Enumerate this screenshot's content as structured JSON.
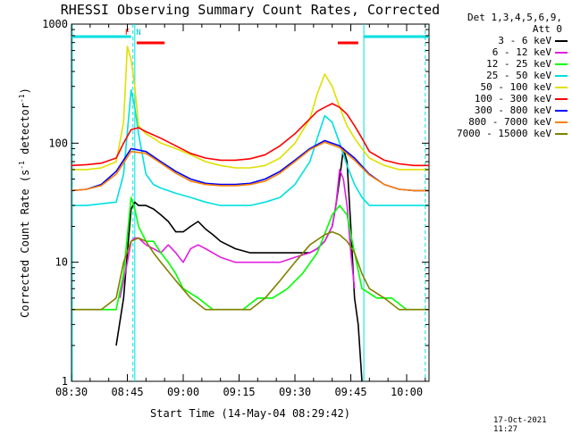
{
  "chart_data": {
    "type": "line",
    "title": "RHESSI Observing Summary Count Rates, Corrected",
    "xlabel": "Start Time (14-May-04 08:29:42)",
    "ylabel": "Corrected Count Rate (s-1 detector-1)",
    "x_ticks": [
      "08:30",
      "08:45",
      "09:00",
      "09:15",
      "09:30",
      "09:45",
      "10:00"
    ],
    "x_tick_minutes": [
      0,
      15,
      30,
      45,
      60,
      75,
      90
    ],
    "xlim_minutes": [
      0,
      96
    ],
    "y_scale": "log",
    "ylim": [
      1,
      1000
    ],
    "y_ticks": [
      "1",
      "10",
      "100",
      "1000"
    ],
    "y_tick_values": [
      1,
      10,
      100,
      1000
    ],
    "legend_header": [
      "Det 1,3,4,5,6,9,",
      "Att 0"
    ],
    "legend_placement": "right, outside",
    "flags": {
      "cyan_bars": [
        [
          0,
          16
        ],
        [
          78.5,
          96
        ]
      ],
      "red_bars": [
        [
          17.5,
          25
        ],
        [
          71.5,
          77
        ]
      ],
      "labels": [
        {
          "text": "F",
          "minute": 15
        },
        {
          "text": "N",
          "minute": 18
        }
      ]
    },
    "vertical_markers_solid": [
      17,
      78.5
    ],
    "vertical_markers_dashed": [
      16.5,
      95
    ],
    "series": [
      {
        "name": "3 - 6 keV",
        "color": "#000000",
        "x": [
          12,
          14,
          15,
          16,
          17,
          18,
          20,
          22,
          24,
          26,
          28,
          30,
          32,
          34,
          36,
          38,
          40,
          44,
          48,
          52,
          56,
          60,
          64,
          66,
          68,
          70,
          71,
          72,
          73,
          74,
          75,
          76,
          77,
          78
        ],
        "y": [
          2,
          5,
          12,
          28,
          32,
          30,
          30,
          28,
          25,
          22,
          18,
          18,
          20,
          22,
          19,
          17,
          15,
          13,
          12,
          12,
          12,
          12,
          12,
          13,
          15,
          20,
          30,
          50,
          90,
          70,
          20,
          5,
          3,
          1
        ]
      },
      {
        "name": "6 - 12 keV",
        "color": "#e020e0",
        "x": [
          13,
          15,
          16,
          17,
          18,
          20,
          22,
          24,
          26,
          28,
          30,
          32,
          34,
          36,
          40,
          44,
          48,
          52,
          56,
          60,
          64,
          66,
          68,
          70,
          71,
          72,
          73,
          74,
          75,
          76
        ],
        "y": [
          5,
          10,
          15,
          16,
          16,
          14,
          13,
          12,
          14,
          12,
          10,
          13,
          14,
          13,
          11,
          10,
          10,
          10,
          10,
          11,
          12,
          13,
          15,
          20,
          30,
          60,
          50,
          30,
          12,
          6
        ]
      },
      {
        "name": "12 - 25 keV",
        "color": "#00ff00",
        "x": [
          0,
          4,
          8,
          12,
          14,
          16,
          17,
          18,
          20,
          22,
          24,
          26,
          28,
          30,
          34,
          38,
          42,
          46,
          50,
          54,
          58,
          62,
          66,
          70,
          72,
          74,
          76,
          78,
          82,
          86,
          90,
          96
        ],
        "y": [
          4,
          4,
          4,
          4,
          8,
          35,
          28,
          20,
          15,
          15,
          12,
          10,
          8,
          6,
          5,
          4,
          4,
          4,
          5,
          5,
          6,
          8,
          12,
          25,
          30,
          25,
          12,
          6,
          5,
          5,
          4,
          4
        ]
      },
      {
        "name": "25 - 50 keV",
        "color": "#00e0e0",
        "x": [
          0,
          4,
          8,
          12,
          14,
          16,
          17,
          18,
          20,
          22,
          24,
          28,
          32,
          36,
          40,
          44,
          48,
          52,
          56,
          60,
          64,
          66,
          68,
          70,
          72,
          74,
          76,
          78,
          80,
          84,
          88,
          92,
          96
        ],
        "y": [
          30,
          30,
          31,
          32,
          55,
          280,
          200,
          120,
          55,
          45,
          42,
          38,
          35,
          32,
          30,
          30,
          30,
          32,
          35,
          45,
          70,
          110,
          170,
          150,
          100,
          65,
          45,
          35,
          30,
          30,
          30,
          30,
          30
        ]
      },
      {
        "name": "50 - 100 keV",
        "color": "#e0e000",
        "x": [
          0,
          4,
          8,
          12,
          14,
          15,
          16,
          17,
          18,
          20,
          22,
          24,
          28,
          32,
          36,
          40,
          44,
          48,
          52,
          56,
          60,
          64,
          66,
          68,
          70,
          72,
          74,
          76,
          78,
          80,
          84,
          88,
          92,
          96
        ],
        "y": [
          60,
          60,
          62,
          70,
          150,
          650,
          500,
          300,
          140,
          120,
          110,
          100,
          90,
          80,
          70,
          65,
          62,
          62,
          65,
          75,
          100,
          160,
          260,
          380,
          300,
          200,
          140,
          110,
          90,
          75,
          65,
          60,
          60,
          60
        ]
      },
      {
        "name": "100 - 300 keV",
        "color": "#ff0000",
        "x": [
          0,
          4,
          8,
          12,
          14,
          16,
          18,
          20,
          24,
          28,
          32,
          36,
          40,
          44,
          48,
          52,
          56,
          60,
          64,
          66,
          68,
          70,
          72,
          74,
          76,
          78,
          80,
          84,
          88,
          92,
          96
        ],
        "y": [
          65,
          66,
          68,
          75,
          100,
          130,
          135,
          125,
          110,
          95,
          82,
          75,
          72,
          72,
          74,
          80,
          95,
          120,
          160,
          185,
          200,
          215,
          200,
          175,
          140,
          110,
          85,
          72,
          67,
          65,
          65
        ]
      },
      {
        "name": "300 - 800 keV",
        "color": "#0000ff",
        "x": [
          0,
          4,
          8,
          12,
          16,
          20,
          24,
          28,
          32,
          36,
          40,
          44,
          48,
          52,
          56,
          60,
          64,
          68,
          72,
          76,
          80,
          84,
          88,
          92,
          96
        ],
        "y": [
          40,
          41,
          45,
          58,
          90,
          85,
          70,
          58,
          50,
          46,
          45,
          45,
          46,
          50,
          58,
          72,
          90,
          105,
          95,
          75,
          55,
          45,
          41,
          40,
          40
        ]
      },
      {
        "name": "800 - 7000 keV",
        "color": "#ff8000",
        "x": [
          0,
          4,
          8,
          12,
          16,
          20,
          24,
          28,
          32,
          36,
          40,
          44,
          48,
          52,
          56,
          60,
          64,
          68,
          72,
          76,
          80,
          84,
          88,
          92,
          96
        ],
        "y": [
          40,
          41,
          44,
          55,
          85,
          82,
          68,
          56,
          48,
          45,
          44,
          44,
          45,
          48,
          56,
          70,
          88,
          102,
          92,
          72,
          54,
          45,
          41,
          40,
          40
        ]
      },
      {
        "name": "7000 - 15000 keV",
        "color": "#808000",
        "x": [
          0,
          4,
          8,
          12,
          14,
          16,
          18,
          20,
          22,
          24,
          28,
          32,
          36,
          40,
          44,
          48,
          52,
          56,
          60,
          64,
          68,
          70,
          72,
          74,
          76,
          78,
          80,
          84,
          88,
          92,
          96
        ],
        "y": [
          4,
          4,
          4,
          5,
          10,
          15,
          16,
          15,
          12,
          10,
          7,
          5,
          4,
          4,
          4,
          4,
          5,
          7,
          10,
          14,
          17,
          18,
          17,
          15,
          12,
          8,
          6,
          5,
          4,
          4,
          4
        ]
      }
    ]
  },
  "footer_date": "17-Oct-2021 11:27"
}
